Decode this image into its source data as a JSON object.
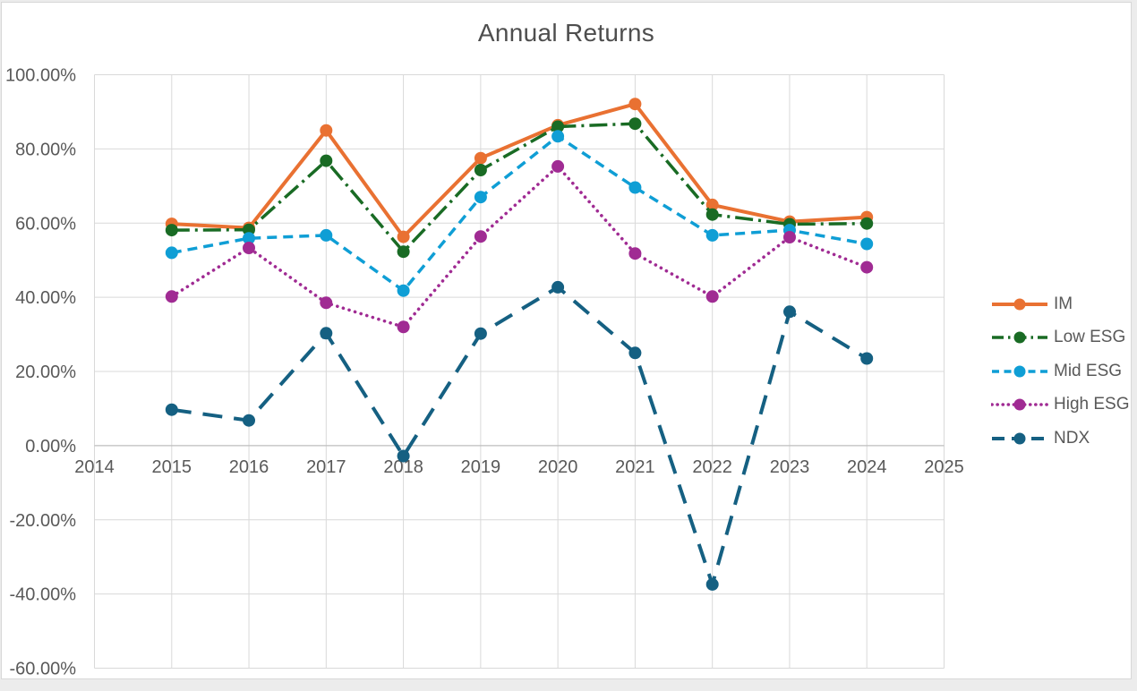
{
  "chart_data": {
    "type": "line",
    "title": "Annual Returns",
    "xlabel": "",
    "ylabel": "",
    "grid": true,
    "legend_position": "right",
    "xlim": [
      2014,
      2025
    ],
    "ylim": [
      -60,
      100
    ],
    "x_tick_labels": [
      "2014",
      "2015",
      "2016",
      "2017",
      "2018",
      "2019",
      "2020",
      "2021",
      "2022",
      "2023",
      "2024",
      "2025"
    ],
    "y_tick_values": [
      100,
      80,
      60,
      40,
      20,
      0,
      -20,
      -40,
      -60
    ],
    "y_tick_labels": [
      "100.00%",
      "80.00%",
      "60.00%",
      "40.00%",
      "20.00%",
      "0.00%",
      "-20.00%",
      "-40.00%",
      "-60.00%"
    ],
    "categories": [
      2015,
      2016,
      2017,
      2018,
      2019,
      2020,
      2021,
      2022,
      2023,
      2024
    ],
    "unit": "percent",
    "series": [
      {
        "name": "IM",
        "color": "#E97132",
        "line_style": "solid",
        "marker": "circle",
        "values": [
          59.8,
          58.7,
          85.0,
          56.3,
          77.5,
          86.4,
          92.1,
          64.9,
          60.4,
          61.6
        ]
      },
      {
        "name": "Low ESG",
        "color": "#196B24",
        "line_style": "dash-dot",
        "marker": "circle",
        "values": [
          58.1,
          58.2,
          76.8,
          52.3,
          74.3,
          86.0,
          86.8,
          62.3,
          59.7,
          59.9
        ]
      },
      {
        "name": "Mid ESG",
        "color": "#0F9ED5",
        "line_style": "dash",
        "marker": "circle",
        "values": [
          52.0,
          55.9,
          56.7,
          41.8,
          67.0,
          83.4,
          69.6,
          56.7,
          58.1,
          54.4
        ]
      },
      {
        "name": "High ESG",
        "color": "#A02B93",
        "line_style": "dot",
        "marker": "circle",
        "values": [
          40.2,
          53.3,
          38.5,
          32.0,
          56.4,
          75.3,
          51.8,
          40.2,
          56.2,
          48.1
        ]
      },
      {
        "name": "NDX",
        "color": "#156082",
        "line_style": "long-dash",
        "marker": "circle",
        "values": [
          9.7,
          6.8,
          30.3,
          -2.8,
          30.2,
          42.7,
          25.0,
          -37.4,
          36.1,
          23.5
        ]
      }
    ],
    "colors": {
      "gridline": "#D9D9D9",
      "zero_axis": "#BFBFBF",
      "tick_text": "#595959",
      "title_text": "#4E4E4E"
    }
  }
}
